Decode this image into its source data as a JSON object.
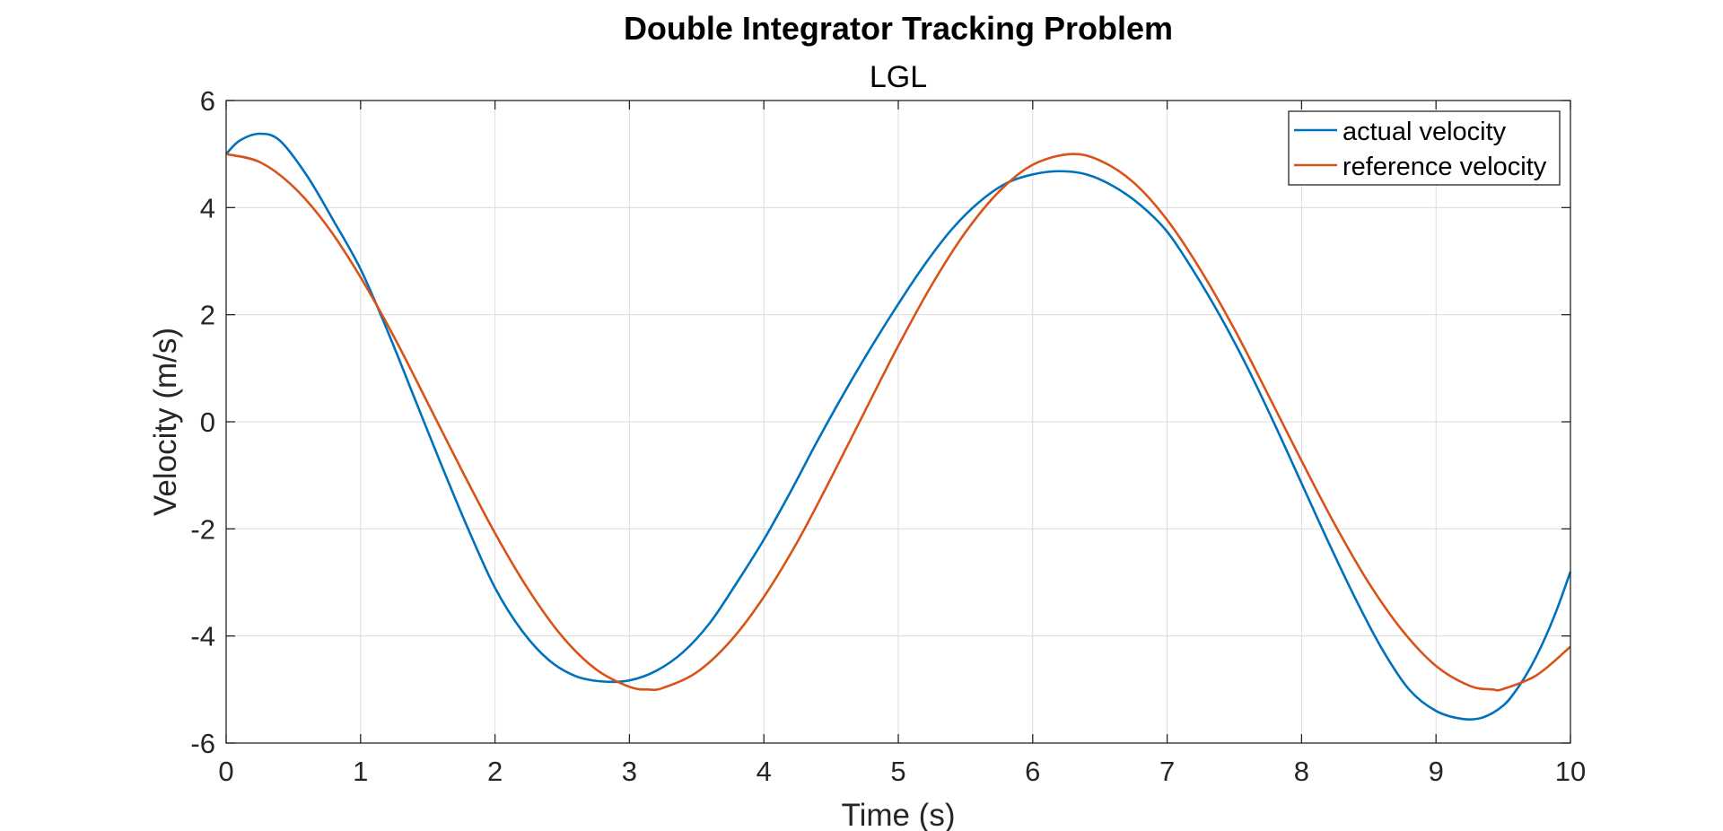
{
  "chart_data": {
    "type": "line",
    "title": "Double Integrator Tracking Problem",
    "subtitle": "LGL",
    "xlabel": "Time (s)",
    "ylabel": "Velocity (m/s)",
    "xlim": [
      0,
      10
    ],
    "ylim": [
      -6,
      6
    ],
    "xticks": [
      "0",
      "1",
      "2",
      "3",
      "4",
      "5",
      "6",
      "7",
      "8",
      "9",
      "10"
    ],
    "yticks": [
      "6",
      "4",
      "2",
      "0",
      "-2",
      "-4",
      "-6"
    ],
    "grid": true,
    "legend_position": "top-right",
    "series": [
      {
        "name": "actual velocity",
        "color": "#0072BD",
        "x": [
          0,
          0.1,
          0.25,
          0.4,
          0.6,
          0.8,
          1.0,
          1.2,
          1.4,
          1.6,
          1.8,
          2.0,
          2.2,
          2.4,
          2.6,
          2.8,
          3.0,
          3.2,
          3.4,
          3.6,
          3.8,
          4.0,
          4.2,
          4.4,
          4.6,
          4.8,
          5.0,
          5.2,
          5.4,
          5.6,
          5.8,
          6.0,
          6.2,
          6.4,
          6.6,
          6.8,
          7.0,
          7.2,
          7.4,
          7.6,
          7.8,
          8.0,
          8.2,
          8.4,
          8.6,
          8.8,
          9.0,
          9.2,
          9.35,
          9.5,
          9.6,
          9.7,
          9.8,
          9.9,
          10.0
        ],
        "y": [
          5.0,
          5.25,
          5.38,
          5.25,
          4.6,
          3.75,
          2.85,
          1.7,
          0.45,
          -0.8,
          -2.0,
          -3.1,
          -3.9,
          -4.45,
          -4.75,
          -4.85,
          -4.83,
          -4.65,
          -4.3,
          -3.75,
          -3.0,
          -2.2,
          -1.3,
          -0.35,
          0.55,
          1.4,
          2.2,
          2.95,
          3.6,
          4.1,
          4.45,
          4.62,
          4.68,
          4.62,
          4.4,
          4.05,
          3.55,
          2.8,
          1.95,
          1.0,
          -0.05,
          -1.15,
          -2.25,
          -3.3,
          -4.25,
          -5.0,
          -5.4,
          -5.55,
          -5.52,
          -5.3,
          -5.0,
          -4.6,
          -4.1,
          -3.5,
          -2.8
        ]
      },
      {
        "name": "reference velocity",
        "color": "#D95319",
        "x": [
          0,
          0.25,
          0.5,
          0.75,
          1.0,
          1.25,
          1.5,
          1.75,
          2.0,
          2.25,
          2.5,
          2.75,
          3.0,
          3.14,
          3.25,
          3.5,
          3.75,
          4.0,
          4.25,
          4.5,
          4.75,
          5.0,
          5.25,
          5.5,
          5.75,
          6.0,
          6.28,
          6.5,
          6.75,
          7.0,
          7.25,
          7.5,
          7.75,
          8.0,
          8.25,
          8.5,
          8.75,
          9.0,
          9.25,
          9.42,
          9.5,
          9.75,
          10.0
        ],
        "y": [
          5.0,
          4.85,
          4.39,
          3.66,
          2.7,
          1.58,
          0.35,
          -0.89,
          -2.08,
          -3.14,
          -4.01,
          -4.62,
          -4.95,
          -5.0,
          -4.97,
          -4.68,
          -4.1,
          -3.27,
          -2.24,
          -1.05,
          0.19,
          1.42,
          2.56,
          3.54,
          4.3,
          4.8,
          5.0,
          4.88,
          4.47,
          3.77,
          2.83,
          1.73,
          0.51,
          -0.73,
          -1.93,
          -3.01,
          -3.9,
          -4.56,
          -4.93,
          -5.0,
          -4.99,
          -4.73,
          -4.2
        ]
      }
    ]
  }
}
